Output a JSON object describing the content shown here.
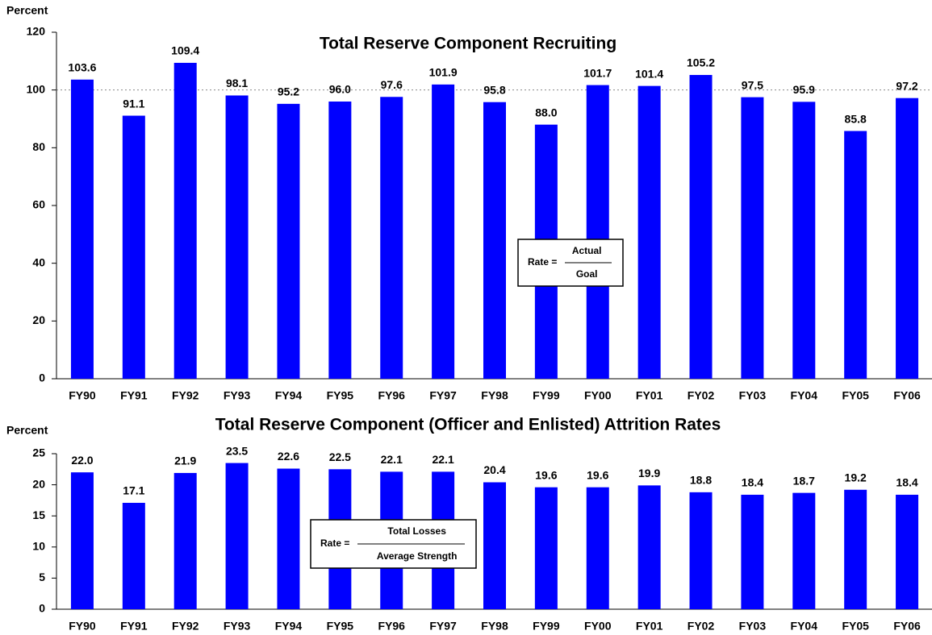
{
  "chart_data": [
    {
      "type": "bar",
      "title": "Total Reserve Component Recruiting",
      "ylabel": "Percent",
      "categories": [
        "FY90",
        "FY91",
        "FY92",
        "FY93",
        "FY94",
        "FY95",
        "FY96",
        "FY97",
        "FY98",
        "FY99",
        "FY00",
        "FY01",
        "FY02",
        "FY03",
        "FY04",
        "FY05",
        "FY06"
      ],
      "values": [
        103.6,
        91.1,
        109.4,
        98.1,
        95.2,
        96.0,
        97.6,
        101.9,
        95.8,
        88.0,
        101.7,
        101.4,
        105.2,
        97.5,
        95.9,
        85.8,
        97.2
      ],
      "value_labels": [
        "103.6",
        "91.1",
        "109.4",
        "98.1",
        "95.2",
        "96.0",
        "97.6",
        "101.9",
        "95.8",
        "88.0",
        "101.7",
        "101.4",
        "105.2",
        "97.5",
        "95.9",
        "85.8",
        "97.2"
      ],
      "color": "#0000ff",
      "ylim": [
        0,
        120
      ],
      "yticks": [
        0,
        20,
        40,
        60,
        80,
        100,
        120
      ],
      "reference_line": 100,
      "formula": {
        "label": "Rate =",
        "numerator": "Actual",
        "denominator": "Goal"
      }
    },
    {
      "type": "bar",
      "title": "Total Reserve Component (Officer and Enlisted) Attrition Rates",
      "ylabel": "Percent",
      "categories": [
        "FY90",
        "FY91",
        "FY92",
        "FY93",
        "FY94",
        "FY95",
        "FY96",
        "FY97",
        "FY98",
        "FY99",
        "FY00",
        "FY01",
        "FY02",
        "FY03",
        "FY04",
        "FY05",
        "FY06"
      ],
      "values": [
        22.0,
        17.1,
        21.9,
        23.5,
        22.6,
        22.5,
        22.1,
        22.1,
        20.4,
        19.6,
        19.6,
        19.9,
        18.8,
        18.4,
        18.7,
        19.2,
        18.4
      ],
      "value_labels": [
        "22.0",
        "17.1",
        "21.9",
        "23.5",
        "22.6",
        "22.5",
        "22.1",
        "22.1",
        "20.4",
        "19.6",
        "19.6",
        "19.9",
        "18.8",
        "18.4",
        "18.7",
        "19.2",
        "18.4"
      ],
      "color": "#0000ff",
      "ylim": [
        0,
        25
      ],
      "yticks": [
        0,
        5,
        10,
        15,
        20,
        25
      ],
      "formula": {
        "label": "Rate =",
        "numerator": "Total Losses",
        "denominator": "Average Strength"
      }
    }
  ]
}
